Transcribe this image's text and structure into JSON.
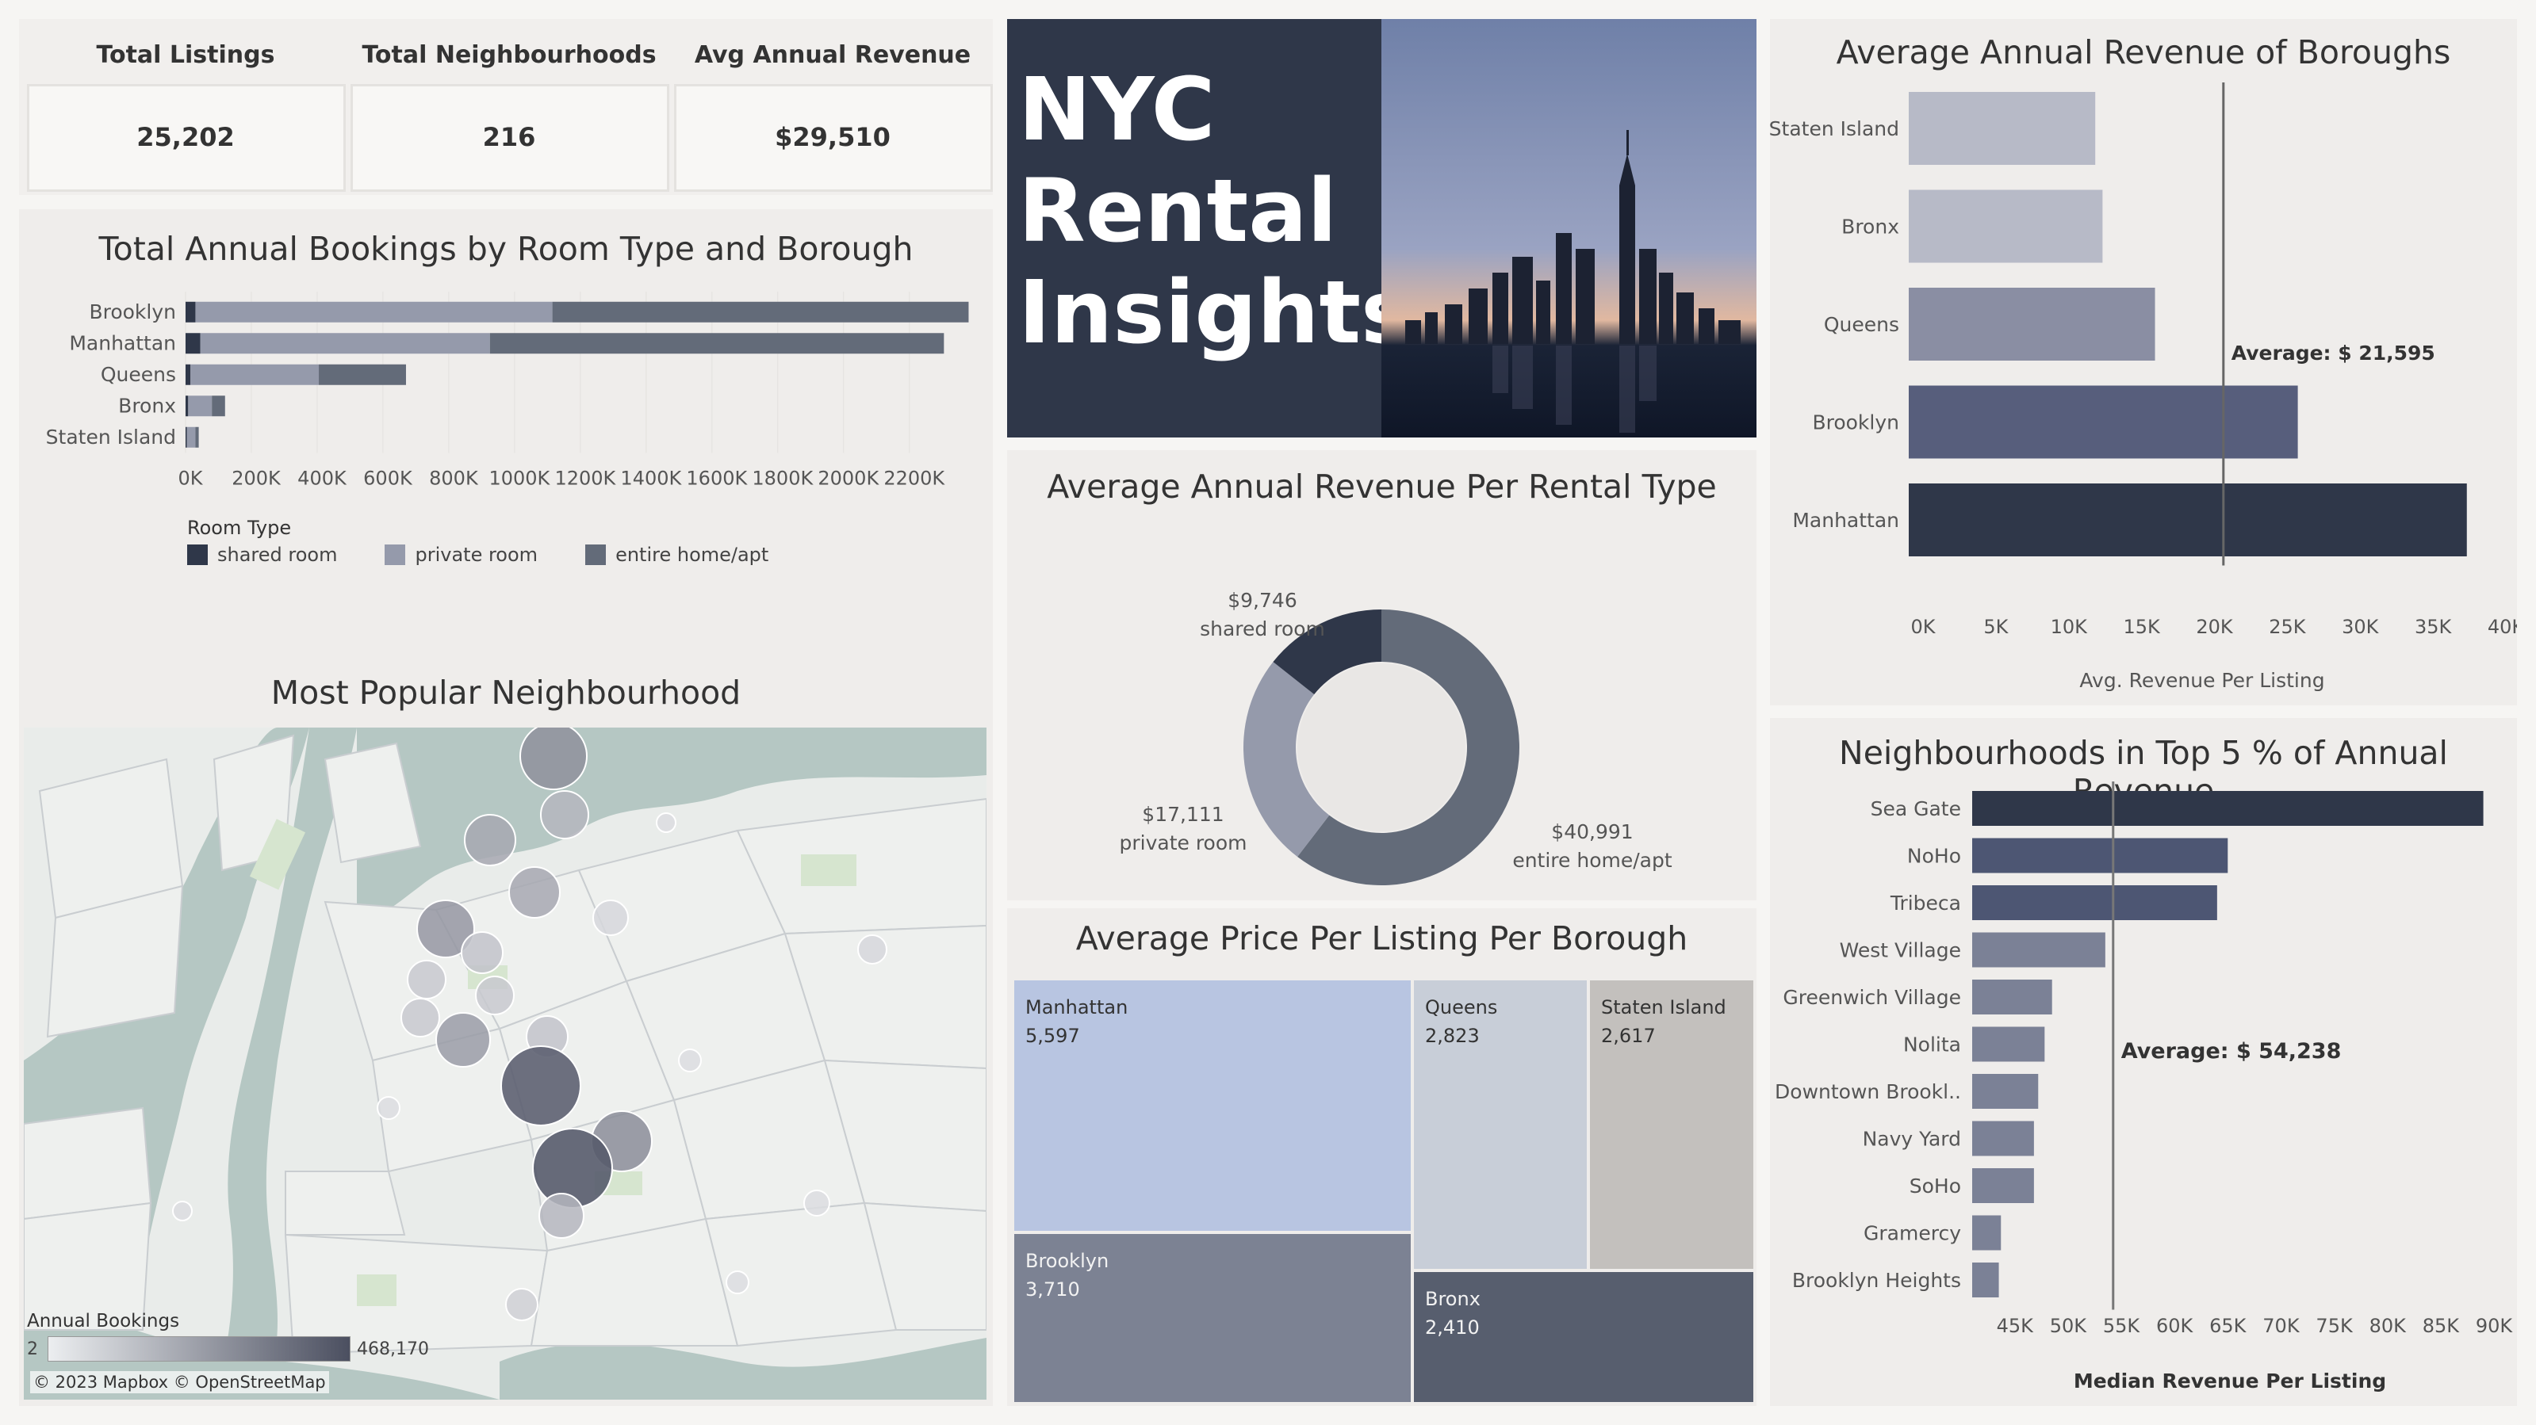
{
  "kpis": [
    {
      "label": "Total Listings",
      "value": "25,202"
    },
    {
      "label": "Total Neighbourhoods",
      "value": "216"
    },
    {
      "label": "Avg Annual Revenue",
      "value": "$29,510"
    }
  ],
  "hero": {
    "line1": "NYC",
    "line2": "Rental",
    "line3": "Insights"
  },
  "colors": {
    "dark": "#2f3749",
    "shared": "#2f3749",
    "private": "#959aab",
    "entire": "#636b79",
    "accent": "#4d5673"
  },
  "bookings_chart": {
    "title": "Total Annual Bookings by Room Type and Borough",
    "legend_title": "Room Type",
    "legend": [
      "shared room",
      "private room",
      "entire home/apt"
    ],
    "chart_data": {
      "type": "bar",
      "orientation": "horizontal",
      "stacked": true,
      "categories": [
        "Brooklyn",
        "Manhattan",
        "Queens",
        "Bronx",
        "Staten Island"
      ],
      "series": [
        {
          "name": "shared room",
          "values": [
            30000,
            45000,
            15000,
            8000,
            4000
          ]
        },
        {
          "name": "private room",
          "values": [
            1085000,
            880000,
            390000,
            72000,
            26000
          ]
        },
        {
          "name": "entire home/apt",
          "values": [
            1265000,
            1380000,
            265000,
            40000,
            10000
          ]
        }
      ],
      "xlim": [
        0,
        2350000
      ],
      "xticks": [
        "0K",
        "200K",
        "400K",
        "600K",
        "800K",
        "1000K",
        "1200K",
        "1400K",
        "1600K",
        "1800K",
        "2000K",
        "2200K"
      ]
    }
  },
  "map": {
    "title": "Most Popular Neighbourhood",
    "legend_title": "Annual Bookings",
    "legend_min": "2",
    "legend_max": "468,170",
    "attribution": "© 2023 Mapbox © OpenStreetMap"
  },
  "donut": {
    "title": "Average Annual Revenue Per Rental Type",
    "chart_data": {
      "type": "pie",
      "donut": true,
      "labels": [
        "entire home/apt",
        "private room",
        "shared room"
      ],
      "values": [
        40991,
        17111,
        9746
      ],
      "value_labels": [
        "$40,991",
        "$17,111",
        "$9,746"
      ]
    }
  },
  "treemap": {
    "title": "Average Price Per Listing Per Borough",
    "chart_data": {
      "type": "treemap",
      "labels": [
        "Manhattan",
        "Brooklyn",
        "Queens",
        "Staten Island",
        "Bronx"
      ],
      "values": [
        5597,
        3710,
        2823,
        2617,
        2410
      ],
      "value_labels": [
        "5,597",
        "3,710",
        "2,823",
        "2,617",
        "2,410"
      ]
    }
  },
  "boroughs": {
    "title": "Average Annual Revenue of Boroughs",
    "xlabel": "Avg. Revenue Per Listing",
    "avg_label": "Average: $ 21,595",
    "chart_data": {
      "type": "bar",
      "orientation": "horizontal",
      "categories": [
        "Staten Island",
        "Bronx",
        "Queens",
        "Brooklyn",
        "Manhattan"
      ],
      "values": [
        12800,
        13300,
        16900,
        26700,
        38300
      ],
      "reference_line": 21595,
      "xlim": [
        0,
        40000
      ],
      "xticks": [
        "0K",
        "5K",
        "10K",
        "15K",
        "20K",
        "25K",
        "30K",
        "35K",
        "40K"
      ]
    }
  },
  "neighbourhoods": {
    "title": "Neighbourhoods in Top 5 % of Annual Revenue",
    "xlabel": "Median Revenue Per Listing",
    "avg_label": "Average: $ 54,238",
    "chart_data": {
      "type": "bar",
      "orientation": "horizontal",
      "categories": [
        "Sea Gate",
        "NoHo",
        "Tribeca",
        "West Village",
        "Greenwich Village",
        "Nolita",
        "Downtown Brookl..",
        "Navy Yard",
        "SoHo",
        "Gramercy",
        "Brooklyn Heights"
      ],
      "values": [
        89000,
        65000,
        64000,
        53500,
        48500,
        47800,
        47200,
        46800,
        46800,
        43700,
        43500
      ],
      "reference_line": 54238,
      "xlim": [
        41000,
        90000
      ],
      "xticks": [
        "45K",
        "50K",
        "55K",
        "60K",
        "65K",
        "70K",
        "75K",
        "80K",
        "85K",
        "90K"
      ]
    }
  }
}
